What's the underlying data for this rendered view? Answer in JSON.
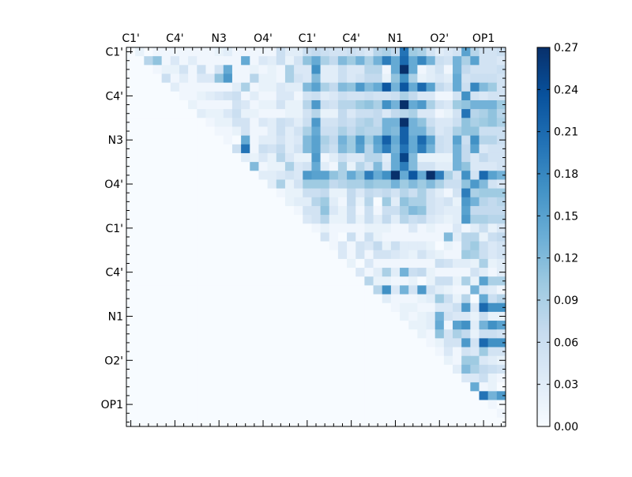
{
  "chart_data": {
    "type": "heatmap",
    "title": "",
    "colormap": "Blues",
    "colormap_stops": [
      "#f7fbff",
      "#deebf7",
      "#c6dbef",
      "#9ecae1",
      "#6baed6",
      "#4292c6",
      "#2171b5",
      "#08519c",
      "#08306b"
    ],
    "n": 43,
    "x_tick_labels": [
      "C1'",
      "C4'",
      "N3",
      "O4'",
      "C1'",
      "C4'",
      "N1",
      "O2'",
      "OP1"
    ],
    "y_tick_labels": [
      "C1'",
      "C4'",
      "N3",
      "O4'",
      "C1'",
      "C4'",
      "N1",
      "O2'",
      "OP1"
    ],
    "tick_label_step": 5,
    "vmin": 0.0,
    "vmax": 0.27,
    "colorbar_ticks": [
      "0.00",
      "0.03",
      "0.06",
      "0.09",
      "0.12",
      "0.15",
      "0.18",
      "0.21",
      "0.24",
      "0.27"
    ],
    "rows_note": "each row lists values for its trailing columns; omitted leading (lower-triangle) entries are 0",
    "rows": [
      [
        0,
        0.02,
        0,
        0.01,
        0.01,
        0.01,
        0.01,
        0.01,
        0.01,
        0.01,
        0.02,
        0.03,
        0.01,
        0.01,
        0.01,
        0.01,
        0.01,
        0.06,
        0.03,
        0.03,
        0.06,
        0.07,
        0.06,
        0.05,
        0.05,
        0.06,
        0.05,
        0.04,
        0.08,
        0.09,
        0.07,
        0.2,
        0.1,
        0.09,
        0.05,
        0.03,
        0.04,
        0.05,
        0.15,
        0.08,
        0.05,
        0.05,
        0.06
      ],
      [
        0,
        0,
        0.08,
        0.11,
        0.01,
        0.04,
        0.01,
        0.03,
        0.01,
        0.01,
        0.01,
        0.01,
        0.01,
        0.14,
        0.01,
        0.04,
        0.03,
        0.06,
        0.02,
        0.05,
        0.11,
        0.14,
        0.09,
        0.07,
        0.12,
        0.1,
        0.13,
        0.09,
        0.13,
        0.19,
        0.14,
        0.21,
        0.14,
        0.18,
        0.13,
        0.06,
        0.05,
        0.13,
        0.09,
        0.15,
        0.05,
        0.05,
        0.04
      ],
      [
        0,
        0,
        0,
        0.01,
        0.02,
        0.02,
        0.05,
        0.01,
        0.06,
        0.01,
        0.05,
        0.14,
        0.01,
        0.01,
        0.02,
        0.01,
        0.02,
        0.01,
        0.09,
        0.04,
        0.04,
        0.17,
        0.03,
        0.03,
        0.06,
        0.04,
        0.04,
        0.08,
        0.08,
        0.01,
        0.14,
        0.27,
        0.14,
        0.01,
        0.03,
        0.05,
        0.01,
        0.13,
        0.07,
        0.05,
        0.05,
        0.05,
        0.06
      ],
      [
        0,
        0,
        0,
        0,
        0.06,
        0.01,
        0.03,
        0.01,
        0.04,
        0.04,
        0.11,
        0.16,
        0.01,
        0.01,
        0.08,
        0.02,
        0.02,
        0.01,
        0.09,
        0.05,
        0.04,
        0.12,
        0.03,
        0.03,
        0.06,
        0.04,
        0.05,
        0.07,
        0.07,
        0.02,
        0.11,
        0.17,
        0.09,
        0.02,
        0.03,
        0.04,
        0.03,
        0.14,
        0.05,
        0.06,
        0.06,
        0.06,
        0.05
      ],
      [
        0,
        0,
        0,
        0,
        0,
        0.03,
        0.01,
        0.01,
        0.01,
        0.01,
        0.01,
        0.01,
        0.03,
        0.09,
        0.01,
        0.02,
        0.02,
        0.04,
        0.03,
        0.03,
        0.12,
        0.15,
        0.09,
        0.07,
        0.12,
        0.11,
        0.16,
        0.12,
        0.14,
        0.23,
        0.13,
        0.23,
        0.14,
        0.21,
        0.15,
        0.07,
        0.05,
        0.14,
        0.06,
        0.18,
        0.12,
        0.1,
        0.05
      ],
      [
        0,
        0,
        0,
        0,
        0,
        0,
        0.01,
        0.01,
        0.02,
        0.03,
        0.04,
        0.05,
        0.06,
        0.01,
        0.03,
        0.01,
        0.01,
        0.04,
        0.04,
        0.01,
        0.05,
        0.06,
        0.03,
        0.04,
        0.06,
        0.05,
        0.05,
        0.06,
        0.05,
        0.05,
        0.06,
        0.09,
        0.07,
        0.04,
        0.04,
        0.01,
        0.01,
        0.05,
        0.17,
        0.05,
        0.04,
        0.05,
        0.05
      ],
      [
        0,
        0,
        0,
        0,
        0,
        0,
        0,
        0.02,
        0.01,
        0.01,
        0.01,
        0.01,
        0.05,
        0.04,
        0.01,
        0.02,
        0.02,
        0.05,
        0.02,
        0.02,
        0.08,
        0.16,
        0.06,
        0.05,
        0.08,
        0.08,
        0.1,
        0.11,
        0.09,
        0.17,
        0.13,
        0.27,
        0.14,
        0.16,
        0.09,
        0.05,
        0.04,
        0.1,
        0.11,
        0.13,
        0.13,
        0.13,
        0.1
      ],
      [
        0,
        0,
        0,
        0,
        0,
        0,
        0,
        0,
        0.03,
        0.02,
        0.02,
        0.04,
        0.06,
        0.02,
        0.02,
        0.01,
        0.01,
        0.01,
        0.02,
        0.02,
        0.05,
        0.08,
        0.02,
        0.02,
        0.07,
        0.04,
        0.06,
        0.06,
        0.07,
        0.04,
        0.07,
        0.08,
        0.09,
        0.04,
        0.04,
        0.01,
        0.02,
        0.05,
        0.2,
        0.08,
        0.09,
        0.11,
        0.08
      ],
      [
        0,
        0,
        0,
        0,
        0,
        0,
        0,
        0,
        0,
        0.01,
        0.02,
        0.02,
        0.05,
        0.05,
        0.01,
        0.04,
        0.03,
        0.06,
        0.05,
        0.03,
        0.06,
        0.16,
        0.05,
        0.05,
        0.07,
        0.06,
        0.08,
        0.09,
        0.07,
        0.13,
        0.13,
        0.27,
        0.13,
        0.11,
        0.06,
        0.04,
        0.04,
        0.06,
        0.11,
        0.09,
        0.1,
        0.11,
        0.09
      ],
      [
        0,
        0,
        0,
        0,
        0,
        0,
        0,
        0,
        0,
        0,
        0.01,
        0.01,
        0.02,
        0.05,
        0.01,
        0.01,
        0.03,
        0.06,
        0.03,
        0.05,
        0.09,
        0.14,
        0.06,
        0.06,
        0.09,
        0.07,
        0.09,
        0.08,
        0.08,
        0.13,
        0.12,
        0.22,
        0.13,
        0.13,
        0.08,
        0.04,
        0.05,
        0.09,
        0.11,
        0.11,
        0.06,
        0.06,
        0.06
      ],
      [
        0,
        0,
        0,
        0,
        0,
        0,
        0,
        0,
        0,
        0,
        0,
        0.01,
        0,
        0.14,
        0.01,
        0.03,
        0.03,
        0.05,
        0.03,
        0.04,
        0.12,
        0.15,
        0.09,
        0.07,
        0.13,
        0.1,
        0.16,
        0.1,
        0.15,
        0.22,
        0.14,
        0.22,
        0.14,
        0.21,
        0.15,
        0.06,
        0.05,
        0.15,
        0.06,
        0.17,
        0.08,
        0.08,
        0.06
      ],
      [
        0,
        0,
        0,
        0,
        0,
        0,
        0,
        0,
        0,
        0,
        0,
        0,
        0.06,
        0.2,
        0.01,
        0.06,
        0.05,
        0.07,
        0.03,
        0.05,
        0.12,
        0.15,
        0.08,
        0.06,
        0.12,
        0.1,
        0.15,
        0.08,
        0.14,
        0.19,
        0.13,
        0.2,
        0.14,
        0.19,
        0.13,
        0.06,
        0.05,
        0.13,
        0.07,
        0.15,
        0.04,
        0.05,
        0.05
      ],
      [
        0,
        0,
        0,
        0,
        0,
        0,
        0,
        0,
        0,
        0,
        0,
        0,
        0,
        0.03,
        0.02,
        0.04,
        0.02,
        0.08,
        0.04,
        0.02,
        0.02,
        0.16,
        0.01,
        0.03,
        0.06,
        0.04,
        0.04,
        0.08,
        0.08,
        0.03,
        0.14,
        0.25,
        0.12,
        0.02,
        0.02,
        0.02,
        0.02,
        0.13,
        0.07,
        0.04,
        0.07,
        0.05,
        0.05
      ],
      [
        0.12,
        0.01,
        0.02,
        0.02,
        0.09,
        0.04,
        0.05,
        0.14,
        0.03,
        0.01,
        0.09,
        0.02,
        0.08,
        0.05,
        0.12,
        0.04,
        0.14,
        0.19,
        0.12,
        0.05,
        0.05,
        0.03,
        0.03,
        0.13,
        0.11,
        0.04,
        0.04,
        0.04,
        0.05
      ],
      [
        0.03,
        0.03,
        0.04,
        0.05,
        0.04,
        0.16,
        0.15,
        0.15,
        0.11,
        0.09,
        0.14,
        0.11,
        0.19,
        0.14,
        0.17,
        0.27,
        0.14,
        0.23,
        0.14,
        0.27,
        0.19,
        0.09,
        0.05,
        0.17,
        0.05,
        0.21,
        0.15,
        0.13
      ],
      [
        0.03,
        0.09,
        0.02,
        0.05,
        0.1,
        0.1,
        0.1,
        0.07,
        0.08,
        0.09,
        0.09,
        0.11,
        0.1,
        0.1,
        0.13,
        0.1,
        0.12,
        0.1,
        0.12,
        0.09,
        0.06,
        0.06,
        0.11,
        0.16,
        0.12,
        0.05,
        0.04
      ],
      [
        0.01,
        0.02,
        0.02,
        0.06,
        0.06,
        0.07,
        0.02,
        0.02,
        0.07,
        0.04,
        0.07,
        0.06,
        0.07,
        0.05,
        0.08,
        0.06,
        0.09,
        0.05,
        0.03,
        0.01,
        0.05,
        0.19,
        0.09,
        0.1,
        0.1,
        0.1
      ],
      [
        0.02,
        0.03,
        0.03,
        0.08,
        0.1,
        0.03,
        0.01,
        0.07,
        0.02,
        0.08,
        0,
        0.1,
        0.03,
        0.11,
        0.09,
        0.09,
        0.05,
        0.04,
        0.05,
        0.02,
        0.16,
        0.13,
        0.08,
        0.07,
        0.08
      ],
      [
        0.01,
        0.05,
        0.05,
        0.11,
        0.04,
        0.02,
        0.06,
        0.01,
        0.06,
        0.01,
        0.06,
        0.06,
        0.09,
        0.12,
        0.11,
        0.05,
        0.04,
        0.03,
        0.03,
        0.15,
        0.07,
        0.07,
        0.07,
        0.07
      ],
      [
        0.04,
        0.05,
        0.08,
        0.02,
        0.02,
        0.06,
        0.02,
        0.06,
        0.03,
        0.07,
        0.03,
        0.08,
        0.06,
        0.07,
        0.04,
        0.03,
        0.02,
        0.03,
        0.16,
        0.09,
        0.09,
        0.08,
        0.08
      ],
      [
        0.01,
        0.02,
        0.01,
        0.01,
        0.01,
        0.01,
        0.02,
        0.02,
        0.02,
        0.01,
        0.01,
        0.04,
        0.01,
        0.02,
        0.01,
        0.01,
        0.04,
        0.01,
        0.03,
        0.06,
        0.02,
        0.04
      ],
      [
        0.05,
        0.01,
        0,
        0.06,
        0.01,
        0.06,
        0.02,
        0.01,
        0.01,
        0.01,
        0.01,
        0.01,
        0.01,
        0.01,
        0.12,
        0.03,
        0.08,
        0.08,
        0.02,
        0.06,
        0.07
      ],
      [
        0.01,
        0.04,
        0.01,
        0.05,
        0.04,
        0.07,
        0.02,
        0.06,
        0.03,
        0.03,
        0.03,
        0.02,
        0,
        0.02,
        0.01,
        0.08,
        0.1,
        0.06,
        0.04,
        0.05
      ],
      [
        0.04,
        0.01,
        0.05,
        0.01,
        0.05,
        0.05,
        0.04,
        0.03,
        0.02,
        0.05,
        0.03,
        0.02,
        0.01,
        0.01,
        0.1,
        0.09,
        0.06,
        0.04,
        0.05
      ],
      [
        0.02,
        0,
        0.04,
        0.01,
        0.01,
        0.01,
        0.01,
        0.01,
        0.01,
        0.01,
        0.06,
        0.05,
        0.03,
        0.03,
        0.02,
        0.09,
        0.02,
        0.03
      ],
      [
        0.04,
        0.01,
        0.03,
        0.09,
        0.03,
        0.13,
        0.06,
        0.07,
        0.02,
        0.01,
        0.01,
        0.01,
        0.01,
        0.05,
        0.03,
        0.01,
        0.03
      ],
      [
        0.08,
        0.02,
        0.02,
        0.01,
        0.01,
        0.02,
        0,
        0.02,
        0.06,
        0.06,
        0.02,
        0.09,
        0.02,
        0.15,
        0.09,
        0.09
      ],
      [
        0.08,
        0.17,
        0.04,
        0.13,
        0.05,
        0.16,
        0.05,
        0.03,
        0.02,
        0.01,
        0.01,
        0.13,
        0.04,
        0.03,
        0.01
      ],
      [
        0.03,
        0.01,
        0.01,
        0.01,
        0.02,
        0.03,
        0.1,
        0.06,
        0.02,
        0.08,
        0,
        0.14,
        0.06,
        0.08
      ],
      [
        0.01,
        0.02,
        0.02,
        0.01,
        0.01,
        0.04,
        0.04,
        0.06,
        0.16,
        0.04,
        0.21,
        0.17,
        0.17
      ],
      [
        0.02,
        0.01,
        0.02,
        0.03,
        0.13,
        0.05,
        0.04,
        0.04,
        0.02,
        0.06,
        0.02,
        0.02
      ],
      [
        0.02,
        0.02,
        0.03,
        0.14,
        0.01,
        0.15,
        0.17,
        0.03,
        0.13,
        0.17,
        0.15
      ],
      [
        0.02,
        0.01,
        0.11,
        0.05,
        0.09,
        0.07,
        0.02,
        0.06,
        0.06,
        0.05
      ],
      [
        0.01,
        0.02,
        0.05,
        0.05,
        0.16,
        0.05,
        0.21,
        0.17,
        0.17
      ],
      [
        0.01,
        0.04,
        0.01,
        0.05,
        0.04,
        0.1,
        0.05,
        0.05
      ],
      [
        0.02,
        0.01,
        0.1,
        0.1,
        0.04,
        0.03,
        0.02
      ],
      [
        0.03,
        0.12,
        0.09,
        0.07,
        0.06,
        0.05
      ],
      [
        0.04,
        0.04,
        0.06,
        0.02,
        0.01
      ],
      [
        0.14,
        0.01,
        0.02,
        0
      ],
      [
        0.2,
        0.13,
        0.16
      ],
      [
        0.01,
        0
      ],
      [
        0.01
      ],
      []
    ]
  }
}
